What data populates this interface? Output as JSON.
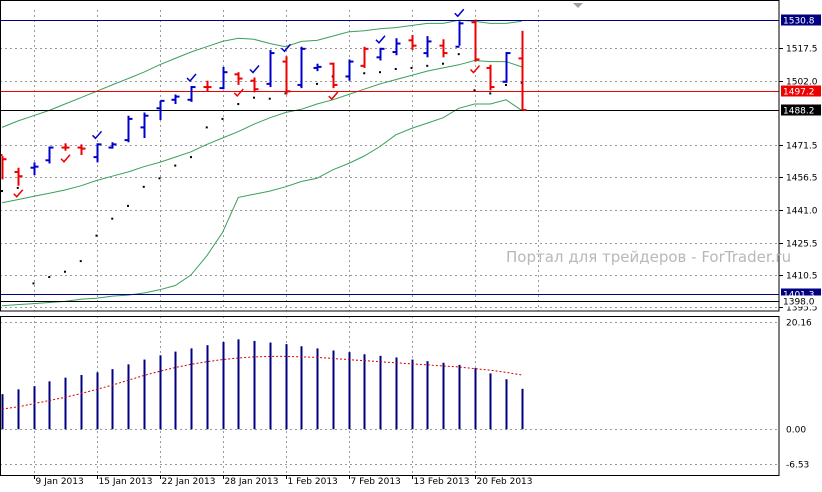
{
  "watermark": "Портал для трейдеров - ForTrader.ru",
  "colors": {
    "up": "#0000cc",
    "down": "#ee0000",
    "bands": "#3aa05a",
    "parabolic_up": "#000000",
    "grid": "#9a9a9a",
    "hist": "#000080",
    "signal": "#cc0000",
    "current_price_line": "#000080",
    "support_line": "#ee0000",
    "check_up": "#0000cc",
    "check_down": "#ee0000"
  },
  "chart_data": [
    {
      "type": "ohlc",
      "name": "price",
      "price_axis": {
        "min": 1393.5,
        "max": 1535.3,
        "ticks": [
          "1517.5",
          "1502.0",
          "1471.5",
          "1456.5",
          "1441.0",
          "1425.5",
          "1410.5",
          "1395.5"
        ]
      },
      "time_axis": {
        "labels": [
          "9 Jan 2013",
          "15 Jan 2013",
          "22 Jan 2013",
          "28 Jan 2013",
          "1 Feb 2013",
          "7 Feb 2013",
          "13 Feb 2013",
          "20 Feb 2013"
        ],
        "label_bar_index": [
          2,
          6,
          10,
          14,
          18,
          22,
          26,
          30
        ]
      },
      "bars": [
        {
          "o": 1467.0,
          "h": 1466.5,
          "l": 1455.5,
          "c": 1465.0,
          "dir": "down"
        },
        {
          "o": 1459.0,
          "h": 1461.0,
          "l": 1452.5,
          "c": 1457.0,
          "dir": "down"
        },
        {
          "o": 1461.0,
          "h": 1463.5,
          "l": 1457.5,
          "c": 1461.5,
          "dir": "up"
        },
        {
          "o": 1464.5,
          "h": 1471.0,
          "l": 1463.0,
          "c": 1470.5,
          "dir": "up"
        },
        {
          "o": 1470.5,
          "h": 1472.5,
          "l": 1469.0,
          "c": 1470.5,
          "dir": "down"
        },
        {
          "o": 1470.5,
          "h": 1472.0,
          "l": 1467.0,
          "c": 1470.0,
          "dir": "down"
        },
        {
          "o": 1466.0,
          "h": 1472.5,
          "l": 1463.5,
          "c": 1472.0,
          "dir": "up"
        },
        {
          "o": 1470.5,
          "h": 1473.0,
          "l": 1470.0,
          "c": 1472.0,
          "dir": "up"
        },
        {
          "o": 1474.0,
          "h": 1485.5,
          "l": 1473.0,
          "c": 1484.0,
          "dir": "up"
        },
        {
          "o": 1480.0,
          "h": 1487.0,
          "l": 1475.0,
          "c": 1485.5,
          "dir": "up"
        },
        {
          "o": 1489.0,
          "h": 1492.5,
          "l": 1483.5,
          "c": 1492.5,
          "dir": "up"
        },
        {
          "o": 1493.0,
          "h": 1495.5,
          "l": 1491.0,
          "c": 1494.5,
          "dir": "up"
        },
        {
          "o": 1493.0,
          "h": 1499.5,
          "l": 1492.0,
          "c": 1499.0,
          "dir": "up"
        },
        {
          "o": 1499.0,
          "h": 1502.0,
          "l": 1497.0,
          "c": 1499.0,
          "dir": "down"
        },
        {
          "o": 1498.5,
          "h": 1508.5,
          "l": 1498.0,
          "c": 1506.0,
          "dir": "up"
        },
        {
          "o": 1505.0,
          "h": 1506.0,
          "l": 1500.0,
          "c": 1503.0,
          "dir": "down"
        },
        {
          "o": 1502.0,
          "h": 1503.5,
          "l": 1496.5,
          "c": 1498.0,
          "dir": "down"
        },
        {
          "o": 1500.5,
          "h": 1516.5,
          "l": 1499.0,
          "c": 1515.0,
          "dir": "up"
        },
        {
          "o": 1511.0,
          "h": 1513.5,
          "l": 1495.5,
          "c": 1497.0,
          "dir": "down"
        },
        {
          "o": 1500.0,
          "h": 1518.0,
          "l": 1498.5,
          "c": 1517.0,
          "dir": "up"
        },
        {
          "o": 1508.0,
          "h": 1510.0,
          "l": 1506.5,
          "c": 1508.5,
          "dir": "up"
        },
        {
          "o": 1510.0,
          "h": 1510.5,
          "l": 1498.5,
          "c": 1500.0,
          "dir": "down"
        },
        {
          "o": 1504.0,
          "h": 1512.0,
          "l": 1502.0,
          "c": 1511.0,
          "dir": "up"
        },
        {
          "o": 1509.0,
          "h": 1518.0,
          "l": 1508.0,
          "c": 1517.0,
          "dir": "down"
        },
        {
          "o": 1513.0,
          "h": 1517.5,
          "l": 1511.5,
          "c": 1517.0,
          "dir": "up"
        },
        {
          "o": 1515.5,
          "h": 1522.0,
          "l": 1514.0,
          "c": 1519.5,
          "dir": "up"
        },
        {
          "o": 1521.0,
          "h": 1523.5,
          "l": 1516.5,
          "c": 1518.5,
          "dir": "down"
        },
        {
          "o": 1515.0,
          "h": 1523.0,
          "l": 1513.0,
          "c": 1520.5,
          "dir": "up"
        },
        {
          "o": 1518.5,
          "h": 1521.5,
          "l": 1513.0,
          "c": 1515.0,
          "dir": "down"
        },
        {
          "o": 1518.0,
          "h": 1530.0,
          "l": 1518.5,
          "c": 1529.0,
          "dir": "up"
        },
        {
          "o": 1529.5,
          "h": 1530.8,
          "l": 1511.0,
          "c": 1512.0,
          "dir": "down"
        },
        {
          "o": 1508.0,
          "h": 1509.5,
          "l": 1497.5,
          "c": 1499.0,
          "dir": "down"
        },
        {
          "o": 1501.5,
          "h": 1515.5,
          "l": 1501.0,
          "c": 1515.0,
          "dir": "up"
        },
        {
          "o": 1512.5,
          "h": 1525.5,
          "l": 1488.2,
          "c": 1488.2,
          "dir": "down"
        }
      ],
      "parabolic_sar": [
        1450.0,
        1451.5,
        1406.5,
        1409.5,
        1412.0,
        1417.0,
        1429.0,
        1437.0,
        1443.0,
        1452.0,
        1456.0,
        1462.0,
        1466.0,
        1480.0,
        1484.0,
        1491.0,
        1494.0,
        1493.5,
        1496.0,
        1499.5,
        1500.5,
        1504.0,
        1504.0,
        1505.5,
        1506.0,
        1507.5,
        1508.0,
        1509.0,
        1510.0,
        1514.5,
        1497.5,
        1496.0,
        1500.0,
        1501.0
      ],
      "bollinger": {
        "upper": [
          1480.0,
          1483.0,
          1485.5,
          1488.0,
          1491.0,
          1494.0,
          1497.0,
          1500.0,
          1503.0,
          1506.0,
          1509.5,
          1512.5,
          1515.5,
          1518.0,
          1520.5,
          1522.0,
          1521.5,
          1519.5,
          1518.0,
          1520.5,
          1521.0,
          1523.0,
          1525.0,
          1525.5,
          1526.5,
          1527.0,
          1528.0,
          1529.0,
          1529.0,
          1530.5,
          1530.0,
          1529.0,
          1529.0,
          1530.0
        ],
        "middle": [
          1444.5,
          1446.0,
          1447.5,
          1449.0,
          1450.5,
          1452.5,
          1455.0,
          1457.0,
          1459.0,
          1461.5,
          1463.5,
          1466.0,
          1468.5,
          1472.0,
          1475.0,
          1478.0,
          1481.5,
          1484.5,
          1487.0,
          1488.5,
          1491.0,
          1493.0,
          1495.5,
          1498.0,
          1500.5,
          1502.5,
          1504.5,
          1506.5,
          1508.0,
          1509.5,
          1511.5,
          1511.0,
          1511.0,
          1508.5
        ],
        "lower": [
          1396.0,
          1396.5,
          1397.0,
          1397.5,
          1398.0,
          1399.0,
          1399.5,
          1400.5,
          1401.0,
          1402.0,
          1403.5,
          1405.5,
          1410.5,
          1419.5,
          1430.5,
          1447.0,
          1448.5,
          1450.0,
          1452.0,
          1454.5,
          1456.0,
          1460.0,
          1463.0,
          1466.5,
          1471.0,
          1476.5,
          1479.5,
          1482.0,
          1484.5,
          1489.0,
          1491.0,
          1491.0,
          1493.0,
          1488.0
        ]
      },
      "levels": [
        {
          "price": 1530.8,
          "label": "1530.8",
          "style": "current"
        },
        {
          "price": 1497.2,
          "label": "1497.2",
          "style": "support"
        },
        {
          "price": 1488.2,
          "label": "1488.2",
          "style": "last"
        },
        {
          "price": 1401.3,
          "label": "1401.3",
          "style": "blue"
        },
        {
          "price": 1398.0,
          "label": "1398.0",
          "style": "black"
        }
      ],
      "signals_up": [
        6,
        12,
        16,
        18,
        24,
        29
      ],
      "signals_down": [
        1,
        4,
        15,
        21,
        30
      ]
    },
    {
      "type": "bar",
      "name": "oscillator",
      "value_axis": {
        "min": -6.53,
        "max": 20.16,
        "ticks": [
          "20.16",
          "0.00",
          "-6.53"
        ]
      },
      "values": [
        6.6,
        7.5,
        8.1,
        9.0,
        9.7,
        10.2,
        10.7,
        11.3,
        12.2,
        13.1,
        13.9,
        14.6,
        15.2,
        15.8,
        16.4,
        16.9,
        16.6,
        16.3,
        16.0,
        15.6,
        15.2,
        14.8,
        14.5,
        14.1,
        13.8,
        13.5,
        13.1,
        12.8,
        12.5,
        12.1,
        11.5,
        10.5,
        9.4,
        7.6
      ],
      "signal": [
        3.8,
        4.2,
        4.8,
        5.4,
        6.0,
        6.7,
        7.5,
        8.3,
        9.2,
        10.1,
        10.9,
        11.6,
        12.2,
        12.7,
        13.1,
        13.4,
        13.6,
        13.7,
        13.7,
        13.6,
        13.5,
        13.3,
        13.1,
        12.9,
        12.7,
        12.5,
        12.3,
        12.1,
        11.9,
        11.7,
        11.4,
        11.1,
        10.7,
        10.2
      ]
    }
  ]
}
